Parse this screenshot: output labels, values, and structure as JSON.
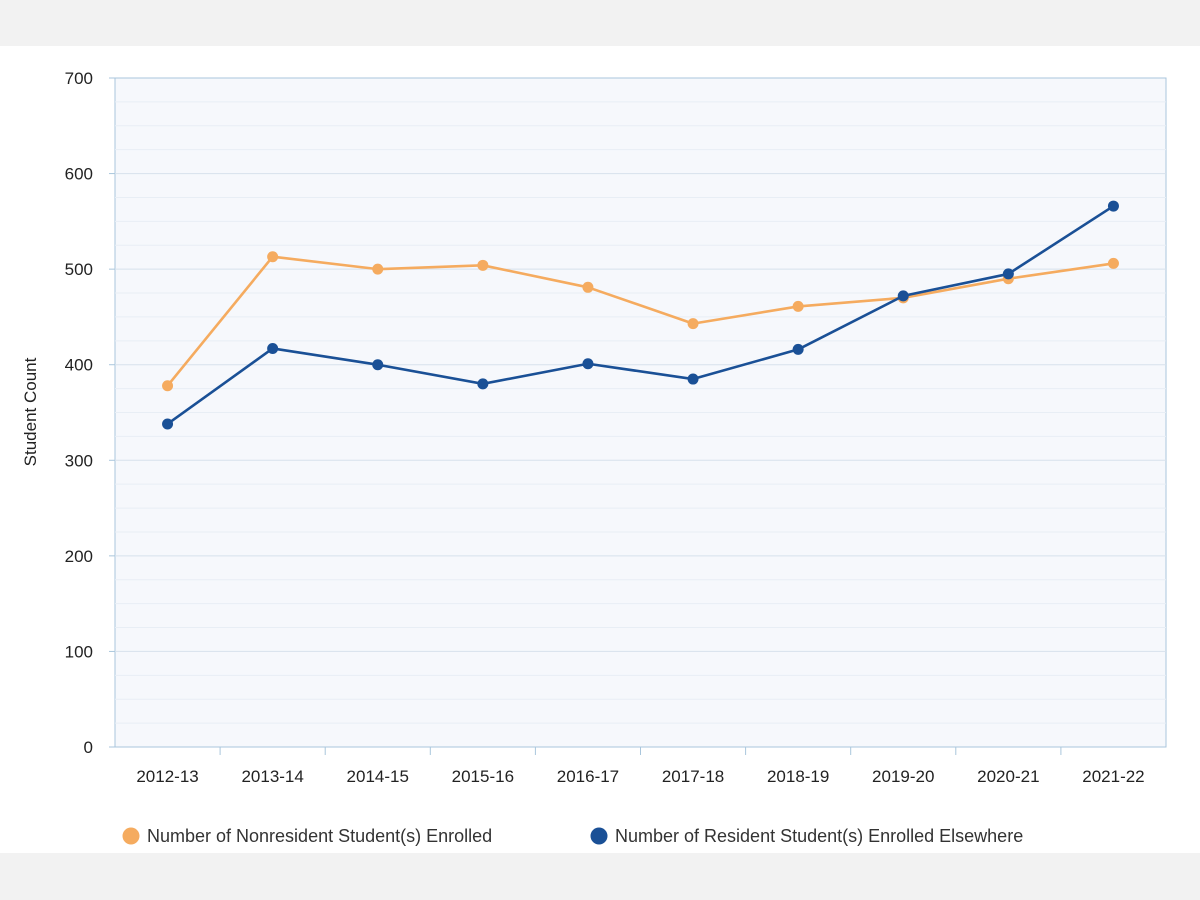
{
  "chart_data": {
    "type": "line",
    "title": "",
    "xlabel": "",
    "ylabel": "Student Count",
    "ylim": [
      0,
      700
    ],
    "yticks": [
      0,
      100,
      200,
      300,
      400,
      500,
      600,
      700
    ],
    "grid": true,
    "legend_position": "bottom",
    "categories": [
      "2012-13",
      "2013-14",
      "2014-15",
      "2015-16",
      "2016-17",
      "2017-18",
      "2018-19",
      "2019-20",
      "2020-21",
      "2021-22"
    ],
    "series": [
      {
        "name": "Number of Nonresident Student(s) Enrolled",
        "color": "#f5ab5f",
        "values": [
          378,
          513,
          500,
          504,
          481,
          443,
          461,
          470,
          490,
          506
        ]
      },
      {
        "name": "Number of Resident Student(s) Enrolled Elsewhere",
        "color": "#1a5096",
        "values": [
          338,
          417,
          400,
          380,
          401,
          385,
          416,
          472,
          495,
          566
        ]
      }
    ]
  }
}
